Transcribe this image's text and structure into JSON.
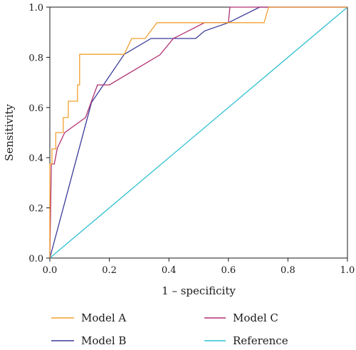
{
  "chart_data": {
    "type": "line",
    "title": "",
    "xlabel": "1 – specificity",
    "ylabel": "Sensitivity",
    "xlim": [
      0,
      1
    ],
    "ylim": [
      0,
      1
    ],
    "xticks": [
      "0.0",
      "0.2",
      "0.4",
      "0.6",
      "0.8",
      "1.0"
    ],
    "yticks": [
      "0.0",
      "0.2",
      "0.4",
      "0.6",
      "0.8",
      "1.0"
    ],
    "grid": false,
    "legend_position": "bottom",
    "series": [
      {
        "name": "Model A",
        "color": "#f0a030",
        "points": [
          [
            0,
            0
          ],
          [
            0,
            0.375
          ],
          [
            0.007,
            0.375
          ],
          [
            0.007,
            0.435
          ],
          [
            0.02,
            0.435
          ],
          [
            0.02,
            0.5
          ],
          [
            0.045,
            0.5
          ],
          [
            0.045,
            0.56
          ],
          [
            0.062,
            0.56
          ],
          [
            0.062,
            0.625
          ],
          [
            0.093,
            0.625
          ],
          [
            0.093,
            0.69
          ],
          [
            0.1,
            0.69
          ],
          [
            0.1,
            0.812
          ],
          [
            0.25,
            0.812
          ],
          [
            0.275,
            0.875
          ],
          [
            0.32,
            0.875
          ],
          [
            0.36,
            0.938
          ],
          [
            0.72,
            0.938
          ],
          [
            0.735,
            1.0
          ],
          [
            1.0,
            1.0
          ]
        ]
      },
      {
        "name": "Model B",
        "color": "#3a3a9a",
        "points": [
          [
            0,
            0
          ],
          [
            0.14,
            0.62
          ],
          [
            0.25,
            0.812
          ],
          [
            0.34,
            0.875
          ],
          [
            0.49,
            0.875
          ],
          [
            0.52,
            0.905
          ],
          [
            0.6,
            0.938
          ],
          [
            0.705,
            1.0
          ],
          [
            1.0,
            1.0
          ]
        ]
      },
      {
        "name": "Model C",
        "color": "#b03070",
        "points": [
          [
            0,
            0
          ],
          [
            0.005,
            0.375
          ],
          [
            0.015,
            0.375
          ],
          [
            0.025,
            0.438
          ],
          [
            0.05,
            0.5
          ],
          [
            0.12,
            0.56
          ],
          [
            0.16,
            0.69
          ],
          [
            0.2,
            0.69
          ],
          [
            0.37,
            0.81
          ],
          [
            0.415,
            0.875
          ],
          [
            0.52,
            0.938
          ],
          [
            0.6,
            0.938
          ],
          [
            0.605,
            1.0
          ],
          [
            1.0,
            1.0
          ]
        ]
      },
      {
        "name": "Reference",
        "color": "#30c0d0",
        "points": [
          [
            0,
            0
          ],
          [
            1,
            1
          ]
        ]
      }
    ]
  }
}
